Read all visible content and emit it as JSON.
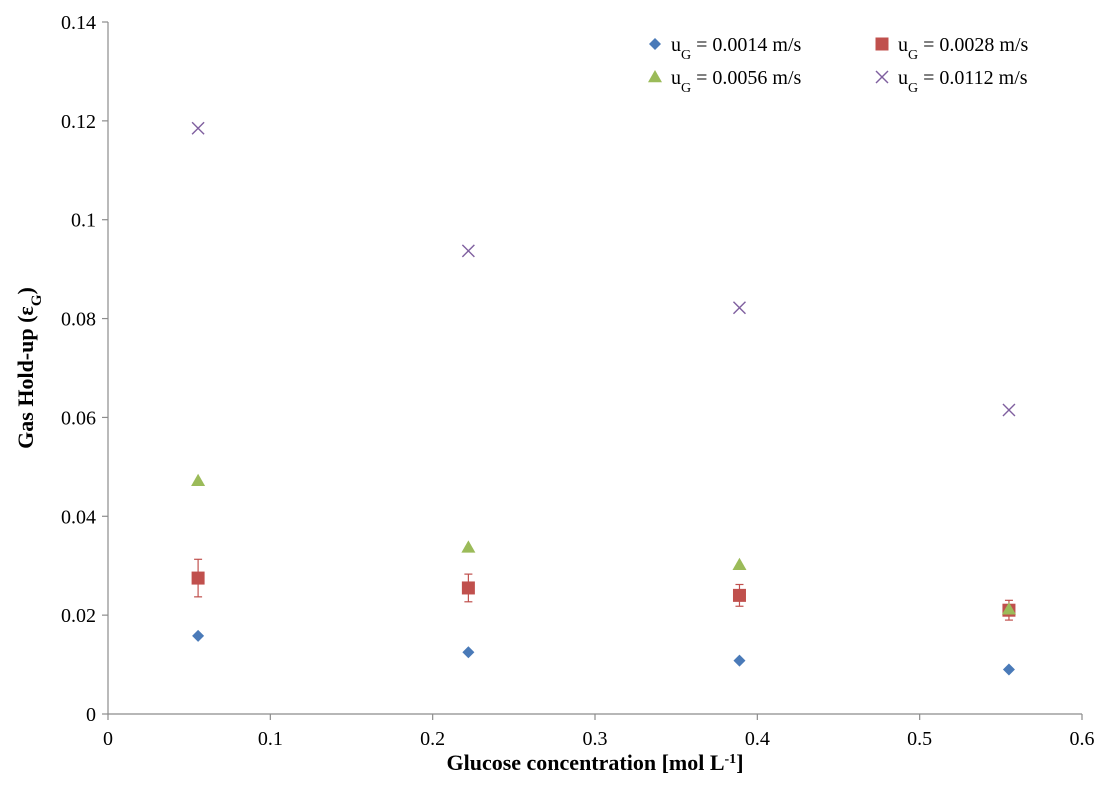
{
  "chart_data": {
    "type": "scatter",
    "xlabel": "Glucose concentration [mol L",
    "xlabel_sup": "-1",
    "xlabel_end": "]",
    "ylabel": "Gas Hold-up (ε",
    "ylabel_sub": "G",
    "ylabel_end": ")",
    "xlim": [
      0,
      0.6
    ],
    "ylim": [
      0,
      0.14
    ],
    "x_ticks": [
      "0",
      "0.1",
      "0.2",
      "0.3",
      "0.4",
      "0.5",
      "0.6"
    ],
    "y_ticks": [
      "0",
      "0.02",
      "0.04",
      "0.06",
      "0.08",
      "0.1",
      "0.12",
      "0.14"
    ],
    "grid": false,
    "legend_position": "top-right",
    "series": [
      {
        "name": "u",
        "name_sub": "G",
        "name_rest": " = 0.0014 m/s",
        "marker": "diamond",
        "color": "#4a7ab8",
        "x": [
          0.0555,
          0.222,
          0.389,
          0.555
        ],
        "y": [
          0.0158,
          0.0125,
          0.0108,
          0.009
        ]
      },
      {
        "name": "u",
        "name_sub": "G",
        "name_rest": " = 0.0028 m/s",
        "marker": "square",
        "color": "#c0504d",
        "x": [
          0.0555,
          0.222,
          0.389,
          0.555
        ],
        "y": [
          0.0275,
          0.0255,
          0.024,
          0.021
        ],
        "error": [
          0.0038,
          0.0028,
          0.0022,
          0.002
        ]
      },
      {
        "name": "u",
        "name_sub": "G",
        "name_rest": " = 0.0056 m/s",
        "marker": "triangle",
        "color": "#9bbb59",
        "x": [
          0.0555,
          0.222,
          0.389,
          0.555
        ],
        "y": [
          0.0472,
          0.0337,
          0.0302,
          0.0212
        ]
      },
      {
        "name": "u",
        "name_sub": "G",
        "name_rest": " = 0.0112 m/s",
        "marker": "x",
        "color": "#7f5f9f",
        "x": [
          0.0555,
          0.222,
          0.389,
          0.555
        ],
        "y": [
          0.1185,
          0.0937,
          0.0822,
          0.0615
        ]
      }
    ]
  }
}
